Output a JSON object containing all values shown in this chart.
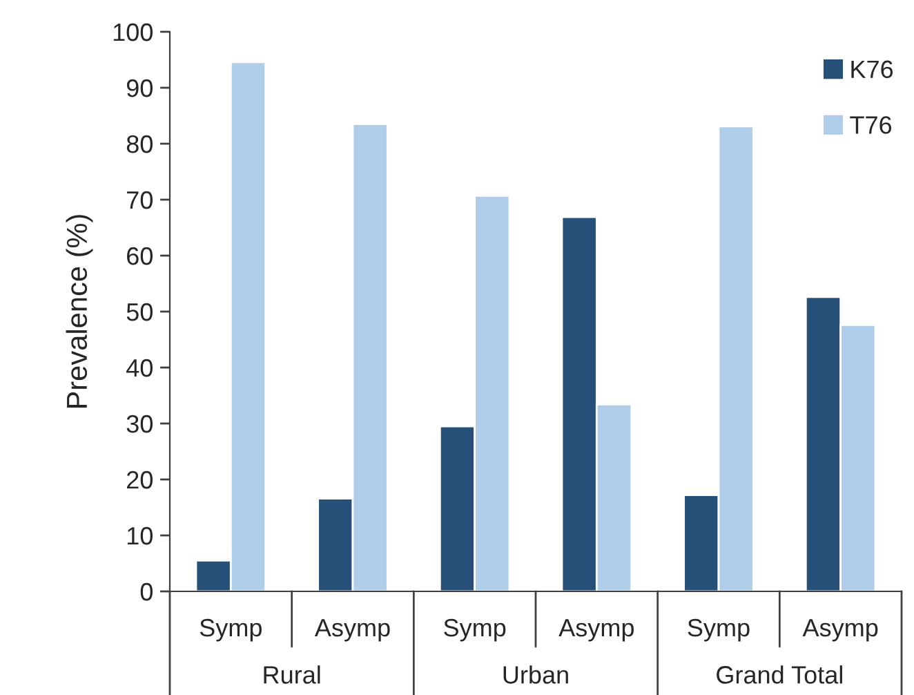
{
  "chart_data": {
    "type": "bar",
    "ylabel": "Prevalence (%)",
    "categories": [
      "Symp",
      "Asymp",
      "Symp",
      "Asymp",
      "Symp",
      "Asymp"
    ],
    "series": [
      {
        "name": "K76",
        "color": "#265078",
        "values": [
          5.5,
          16.6,
          29.5,
          66.9,
          17.2,
          52.6
        ]
      },
      {
        "name": "T76",
        "color": "#afcce8",
        "values": [
          94.6,
          83.5,
          70.7,
          33.4,
          83.1,
          47.6
        ]
      }
    ],
    "annotations": [
      "Rural",
      "Urban",
      "Grand Total"
    ],
    "ylim": [
      0,
      100
    ],
    "yticks": [
      0,
      10,
      20,
      30,
      40,
      50,
      60,
      70,
      80,
      90,
      100
    ],
    "grid": false,
    "legend": "top right"
  }
}
